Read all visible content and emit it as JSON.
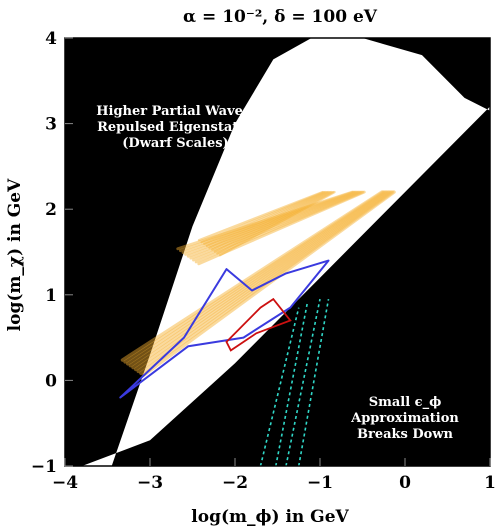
{
  "chart_data": {
    "type": "region-plot",
    "title": "α = 10⁻²,  δ = 100 eV",
    "xlabel": "log(m_ϕ) in GeV",
    "ylabel": "log(m_χ) in GeV",
    "xlim": [
      -4,
      1
    ],
    "ylim": [
      -1,
      4
    ],
    "x_ticks": [
      "−4",
      "−3",
      "−2",
      "−1",
      "0",
      "1"
    ],
    "y_ticks": [
      "−1",
      "0",
      "1",
      "2",
      "3",
      "4"
    ],
    "grid": false,
    "legend": "none",
    "colors": {
      "excluded": "#000000",
      "allowed": "#ffffff",
      "resonance_band": "#f5b030",
      "blue_contour": "#3a3adf",
      "red_contour": "#cc1010",
      "cyan_dashed": "#30d8c8"
    },
    "regions": {
      "white_lower_boundary": [
        [
          -3.8,
          -1
        ],
        [
          -3.0,
          -0.7
        ],
        [
          -2.0,
          0.2
        ],
        [
          -1.0,
          1.2
        ],
        [
          0.0,
          2.2
        ],
        [
          1.0,
          3.2
        ]
      ],
      "white_upper_boundary": [
        [
          -3.45,
          -1
        ],
        [
          -3.0,
          0.3
        ],
        [
          -2.5,
          1.8
        ],
        [
          -2.0,
          3.0
        ],
        [
          -1.55,
          3.75
        ],
        [
          -1.1,
          4.0
        ],
        [
          -0.5,
          4.0
        ],
        [
          0.2,
          3.8
        ],
        [
          0.7,
          3.3
        ],
        [
          1.0,
          3.15
        ]
      ],
      "resonance_bands": [
        {
          "start": [
            -3.2,
            0.15
          ],
          "end": [
            -0.2,
            2.2
          ]
        },
        {
          "start": [
            -2.55,
            1.45
          ],
          "end": [
            -0.55,
            2.2
          ]
        },
        {
          "start": [
            -2.3,
            1.55
          ],
          "end": [
            -0.9,
            2.2
          ]
        }
      ],
      "blue_contour": [
        [
          -3.35,
          -0.2
        ],
        [
          -2.6,
          0.5
        ],
        [
          -2.1,
          1.3
        ],
        [
          -1.8,
          1.05
        ],
        [
          -1.4,
          1.25
        ],
        [
          -0.9,
          1.4
        ],
        [
          -1.35,
          0.85
        ],
        [
          -1.9,
          0.5
        ],
        [
          -2.55,
          0.4
        ]
      ],
      "red_contour": [
        [
          -2.1,
          0.45
        ],
        [
          -1.7,
          0.85
        ],
        [
          -1.55,
          0.95
        ],
        [
          -1.35,
          0.7
        ],
        [
          -1.75,
          0.55
        ],
        [
          -2.05,
          0.35
        ]
      ],
      "cyan_lines": [
        [
          [
            -1.7,
            -1.0
          ],
          [
            -1.25,
            0.85
          ]
        ],
        [
          [
            -1.52,
            -1.0
          ],
          [
            -1.15,
            0.9
          ]
        ],
        [
          [
            -1.4,
            -1.0
          ],
          [
            -1.0,
            0.95
          ]
        ],
        [
          [
            -1.25,
            -1.0
          ],
          [
            -0.9,
            0.95
          ]
        ]
      ]
    },
    "annotations": [
      {
        "lines": [
          "Higher Partial Waves,",
          "Repulsed Eigenstates",
          "(Dwarf Scales)"
        ],
        "at": [
          -2.7,
          3.1
        ]
      },
      {
        "lines": [
          "Small ϵ_ϕ",
          "Approximation",
          "Breaks Down"
        ],
        "at": [
          0.0,
          -0.3
        ]
      }
    ]
  }
}
